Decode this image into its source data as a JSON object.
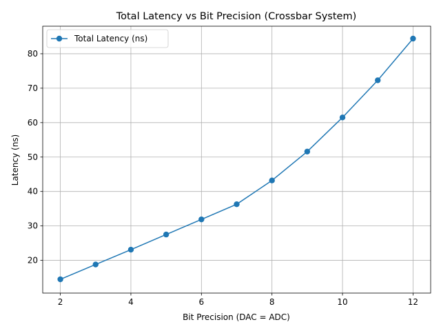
{
  "chart_data": {
    "type": "line",
    "title": "Total Latency vs Bit Precision (Crossbar System)",
    "xlabel": "Bit Precision (DAC = ADC)",
    "ylabel": "Latency (ns)",
    "xlim": [
      1.5,
      12.5
    ],
    "ylim": [
      10.5,
      88.0
    ],
    "xticks": [
      2,
      4,
      6,
      8,
      10,
      12
    ],
    "yticks": [
      20,
      30,
      40,
      50,
      60,
      70,
      80
    ],
    "grid": true,
    "legend_position": "upper-left",
    "series": [
      {
        "name": "Total Latency (ns)",
        "color": "#1f77b4",
        "marker": "circle",
        "x": [
          2,
          3,
          4,
          5,
          6,
          7,
          8,
          9,
          10,
          11,
          12
        ],
        "y": [
          14.5,
          18.8,
          23.1,
          27.5,
          31.9,
          36.3,
          43.2,
          51.6,
          61.5,
          72.3,
          84.4
        ]
      }
    ]
  }
}
